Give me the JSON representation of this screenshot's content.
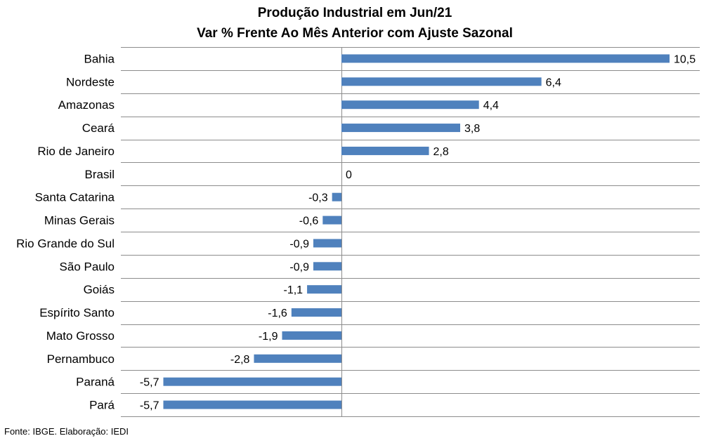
{
  "chart_data": {
    "type": "bar",
    "orientation": "horizontal",
    "title": "Produção Industrial em Jun/21",
    "subtitle": "Var % Frente Ao Mês Anterior com Ajuste Sazonal",
    "categories": [
      "Bahia",
      "Nordeste",
      "Amazonas",
      "Ceará",
      "Rio de Janeiro",
      "Brasil",
      "Santa Catarina",
      "Minas Gerais",
      "Rio Grande do Sul",
      "São Paulo",
      "Goiás",
      "Espírito Santo",
      "Mato Grosso",
      "Pernambuco",
      "Paraná",
      "Pará"
    ],
    "values": [
      10.5,
      6.4,
      4.4,
      3.8,
      2.8,
      0,
      -0.3,
      -0.6,
      -0.9,
      -0.9,
      -1.1,
      -1.6,
      -1.9,
      -2.8,
      -5.7,
      -5.7
    ],
    "value_labels": [
      "10,5",
      "6,4",
      "4,4",
      "3,8",
      "2,8",
      "0",
      "-0,3",
      "-0,6",
      "-0,9",
      "-0,9",
      "-1,1",
      "-1,6",
      "-1,9",
      "-2,8",
      "-5,7",
      "-5,7"
    ],
    "xlim": [
      -6.2,
      10.5
    ],
    "grid": true,
    "bar_color": "#4F81BD"
  },
  "footer": {
    "source": "Fonte: IBGE. Elaboração: IEDI"
  }
}
